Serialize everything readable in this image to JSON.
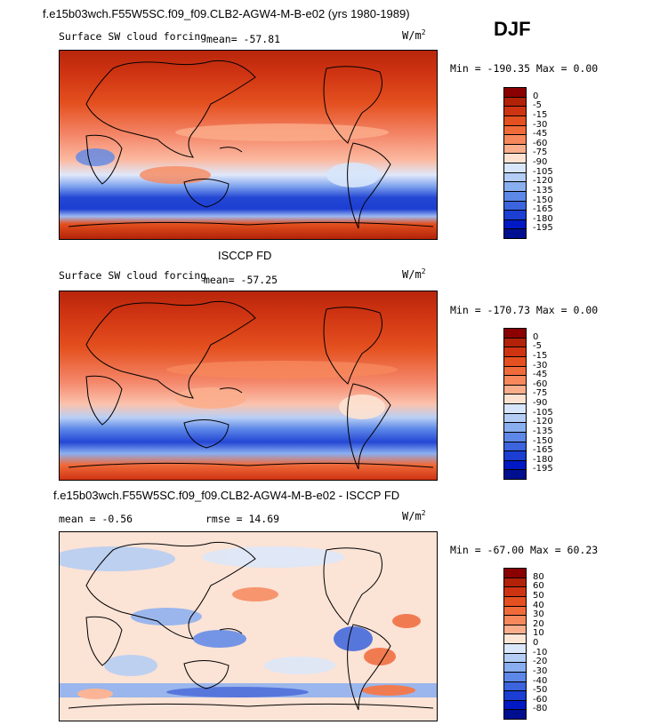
{
  "header": {
    "title": "f.e15b03wch.F55W5SC.f09_f09.CLB2-AGW4-M-B-e02 (yrs 1980-1989)",
    "season": "DJF"
  },
  "panel1": {
    "label": "Surface SW cloud forcing",
    "mean_text": "mean= -57.81",
    "unit": "W/m",
    "unit_sup": "2",
    "minmax": "Min = -190.35 Max =   0.00"
  },
  "panel2": {
    "title": "ISCCP FD",
    "label": "Surface SW cloud forcing",
    "mean_text": "mean= -57.25",
    "unit": "W/m",
    "unit_sup": "2",
    "minmax": "Min = -170.73 Max =   0.00"
  },
  "panel3": {
    "title": "f.e15b03wch.F55W5SC.f09_f09.CLB2-AGW4-M-B-e02 - ISCCP FD",
    "mean_text": "mean =  -0.56",
    "rmse_text": "rmse =  14.69",
    "unit": "W/m",
    "unit_sup": "2",
    "minmax": "Min = -67.00 Max =  60.23"
  },
  "colorbars": {
    "abs": {
      "labels": [
        "0",
        "-5",
        "-15",
        "-30",
        "-45",
        "-60",
        "-75",
        "-90",
        "-105",
        "-120",
        "-135",
        "-150",
        "-165",
        "-180",
        "-195"
      ],
      "colors": [
        "#8b0000",
        "#b22208",
        "#cf3412",
        "#e4501f",
        "#f06a3a",
        "#f7885c",
        "#fbae8c",
        "#fde2d2",
        "#d7e6fb",
        "#b3cdf5",
        "#8aaff0",
        "#5d88e8",
        "#3b64de",
        "#1c3ed2",
        "#0019c4",
        "#000f8f"
      ]
    },
    "diff": {
      "labels": [
        "80",
        "60",
        "50",
        "40",
        "30",
        "20",
        "10",
        "0",
        "-10",
        "-20",
        "-30",
        "-40",
        "-50",
        "-60",
        "-80"
      ],
      "colors": [
        "#8b0000",
        "#b22208",
        "#cf3412",
        "#e4501f",
        "#f06a3a",
        "#f7885c",
        "#fbae8c",
        "#fde6d6",
        "#dbe8fb",
        "#b3cdf5",
        "#8aaff0",
        "#5d88e8",
        "#3b64de",
        "#1c3ed2",
        "#0019c4",
        "#000f8f"
      ]
    }
  }
}
